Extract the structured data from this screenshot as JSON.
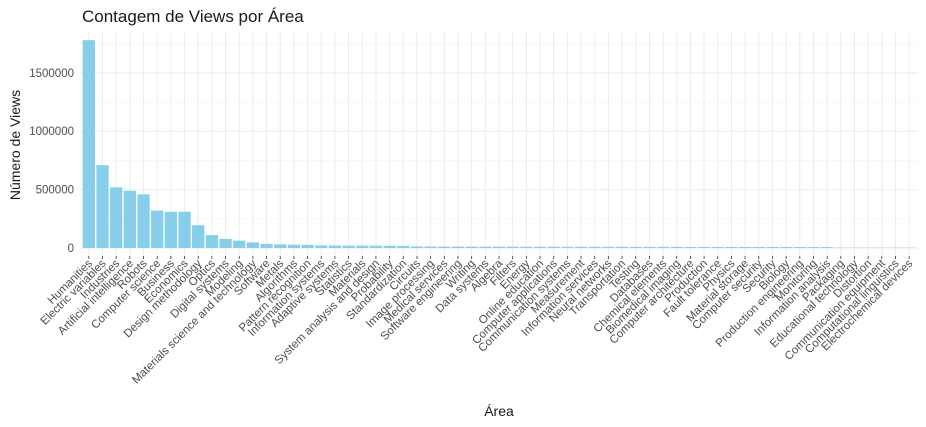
{
  "chart_data": {
    "type": "bar",
    "title": "Contagem de Views por Área",
    "xlabel": "Área",
    "ylabel": "Número de Views",
    "ylim": [
      0,
      1850000
    ],
    "yticks": [
      0,
      500000,
      1000000,
      1500000
    ],
    "ytick_labels": [
      "0",
      "500000",
      "1000000",
      "1500000"
    ],
    "grid": true,
    "bar_color": "#87CEEB",
    "categories": [
      "Humanities",
      "Electric variables",
      "Industries",
      "Artificial intelligence",
      "Robots",
      "Computer science",
      "Business",
      "Economics",
      "Design methodology",
      "Optics",
      "Digital systems",
      "Modeling",
      "Materials science and technology",
      "Software",
      "Metals",
      "Algorithms",
      "Pattern recognition",
      "Information systems",
      "Adaptive systems",
      "Statistics",
      "Materials",
      "System analysis and design",
      "Probability",
      "Standardization",
      "Circuits",
      "Image processing",
      "Medical services",
      "Software engineering",
      "Writing",
      "Data systems",
      "Algebra",
      "Filters",
      "Energy",
      "Online education",
      "Computer applications",
      "Communication systems",
      "Measurement",
      "Information services",
      "Neural networks",
      "Transportation",
      "Testing",
      "Databases",
      "Chemical elements",
      "Biomedical imaging",
      "Computer architecture",
      "Production",
      "Fault tolerance",
      "Physics",
      "Material storage",
      "Computer security",
      "Security",
      "Biology",
      "Production engineering",
      "Monitoring",
      "Information analysis",
      "Packaging",
      "Educational technology",
      "Distortion",
      "Communication equipment",
      "Computational linguistics",
      "Electrochemical devices"
    ],
    "values": [
      1780000,
      710000,
      520000,
      490000,
      460000,
      320000,
      310000,
      310000,
      195000,
      110000,
      78000,
      63000,
      48000,
      34000,
      31000,
      28000,
      27000,
      22000,
      21000,
      20000,
      19500,
      19000,
      18500,
      18000,
      13000,
      12500,
      12000,
      12000,
      11500,
      11500,
      11000,
      11000,
      11000,
      10500,
      10500,
      10500,
      10000,
      10000,
      10000,
      10000,
      9500,
      9500,
      9500,
      9500,
      9000,
      9000,
      9000,
      9000,
      8500,
      8500,
      8500,
      8500,
      8000,
      8000,
      8000,
      500,
      400,
      300,
      300,
      200,
      200
    ]
  }
}
